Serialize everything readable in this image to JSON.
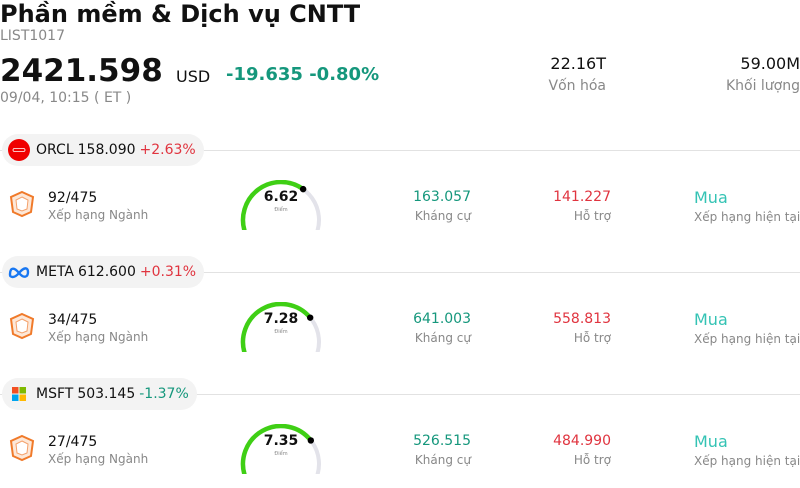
{
  "header": {
    "title": "Phần mềm & Dịch vụ CNTT",
    "code": "LIST1017",
    "price": "2421.598",
    "currency": "USD",
    "change": "-19.635 -0.80%",
    "time": "09/04, 10:15 ( ET )",
    "market_cap_value": "22.16T",
    "market_cap_label": "Vốn hóa",
    "volume_value": "59.00M",
    "volume_label": "Khối lượng"
  },
  "colors": {
    "up": "#e0343f",
    "down": "#15977c",
    "gauge": "#3fcf15",
    "rating": "#34c3b4"
  },
  "stocks": [
    {
      "symbol": "ORCL",
      "price": "158.090",
      "change": "+2.63%",
      "direction": "up",
      "logo": "oracle-logo",
      "rank": "92/475",
      "rank_label": "Xếp hạng Ngành",
      "score": "6.62",
      "score_label": "Điểm",
      "score_fraction": 0.662,
      "resistance": "163.057",
      "resistance_label": "Kháng cự",
      "support": "141.227",
      "support_label": "Hỗ trợ",
      "rating": "Mua",
      "rating_label": "Xếp hạng hiện tại"
    },
    {
      "symbol": "META",
      "price": "612.600",
      "change": "+0.31%",
      "direction": "up",
      "logo": "meta-logo",
      "rank": "34/475",
      "rank_label": "Xếp hạng Ngành",
      "score": "7.28",
      "score_label": "Điểm",
      "score_fraction": 0.728,
      "resistance": "641.003",
      "resistance_label": "Kháng cự",
      "support": "558.813",
      "support_label": "Hỗ trợ",
      "rating": "Mua",
      "rating_label": "Xếp hạng hiện tại"
    },
    {
      "symbol": "MSFT",
      "price": "503.145",
      "change": "-1.37%",
      "direction": "down",
      "logo": "microsoft-logo",
      "rank": "27/475",
      "rank_label": "Xếp hạng Ngành",
      "score": "7.35",
      "score_label": "Điểm",
      "score_fraction": 0.735,
      "resistance": "526.515",
      "resistance_label": "Kháng cự",
      "support": "484.990",
      "support_label": "Hỗ trợ",
      "rating": "Mua",
      "rating_label": "Xếp hạng hiện tại"
    }
  ]
}
